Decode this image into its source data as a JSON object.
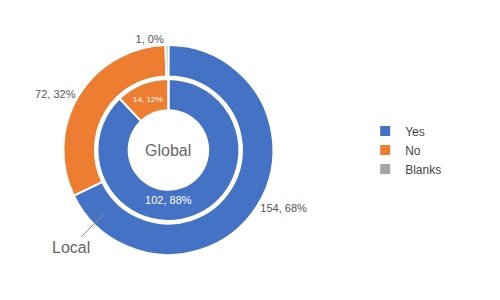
{
  "chart_data": {
    "type": "donut",
    "categories": [
      "Yes",
      "No",
      "Blanks"
    ],
    "colors": [
      "#4472C4",
      "#ED7D31",
      "#A5A5A5"
    ],
    "legend": "right",
    "data_labels": true,
    "series": [
      {
        "name": "Local",
        "values": [
          154,
          72,
          1
        ],
        "value_labels": [
          "154, 68%",
          "72, 32%",
          "1, 0%"
        ]
      },
      {
        "name": "Global",
        "values": [
          102,
          14,
          0
        ],
        "value_labels": [
          "102, 88%",
          "14, 12%",
          null
        ]
      }
    ]
  }
}
